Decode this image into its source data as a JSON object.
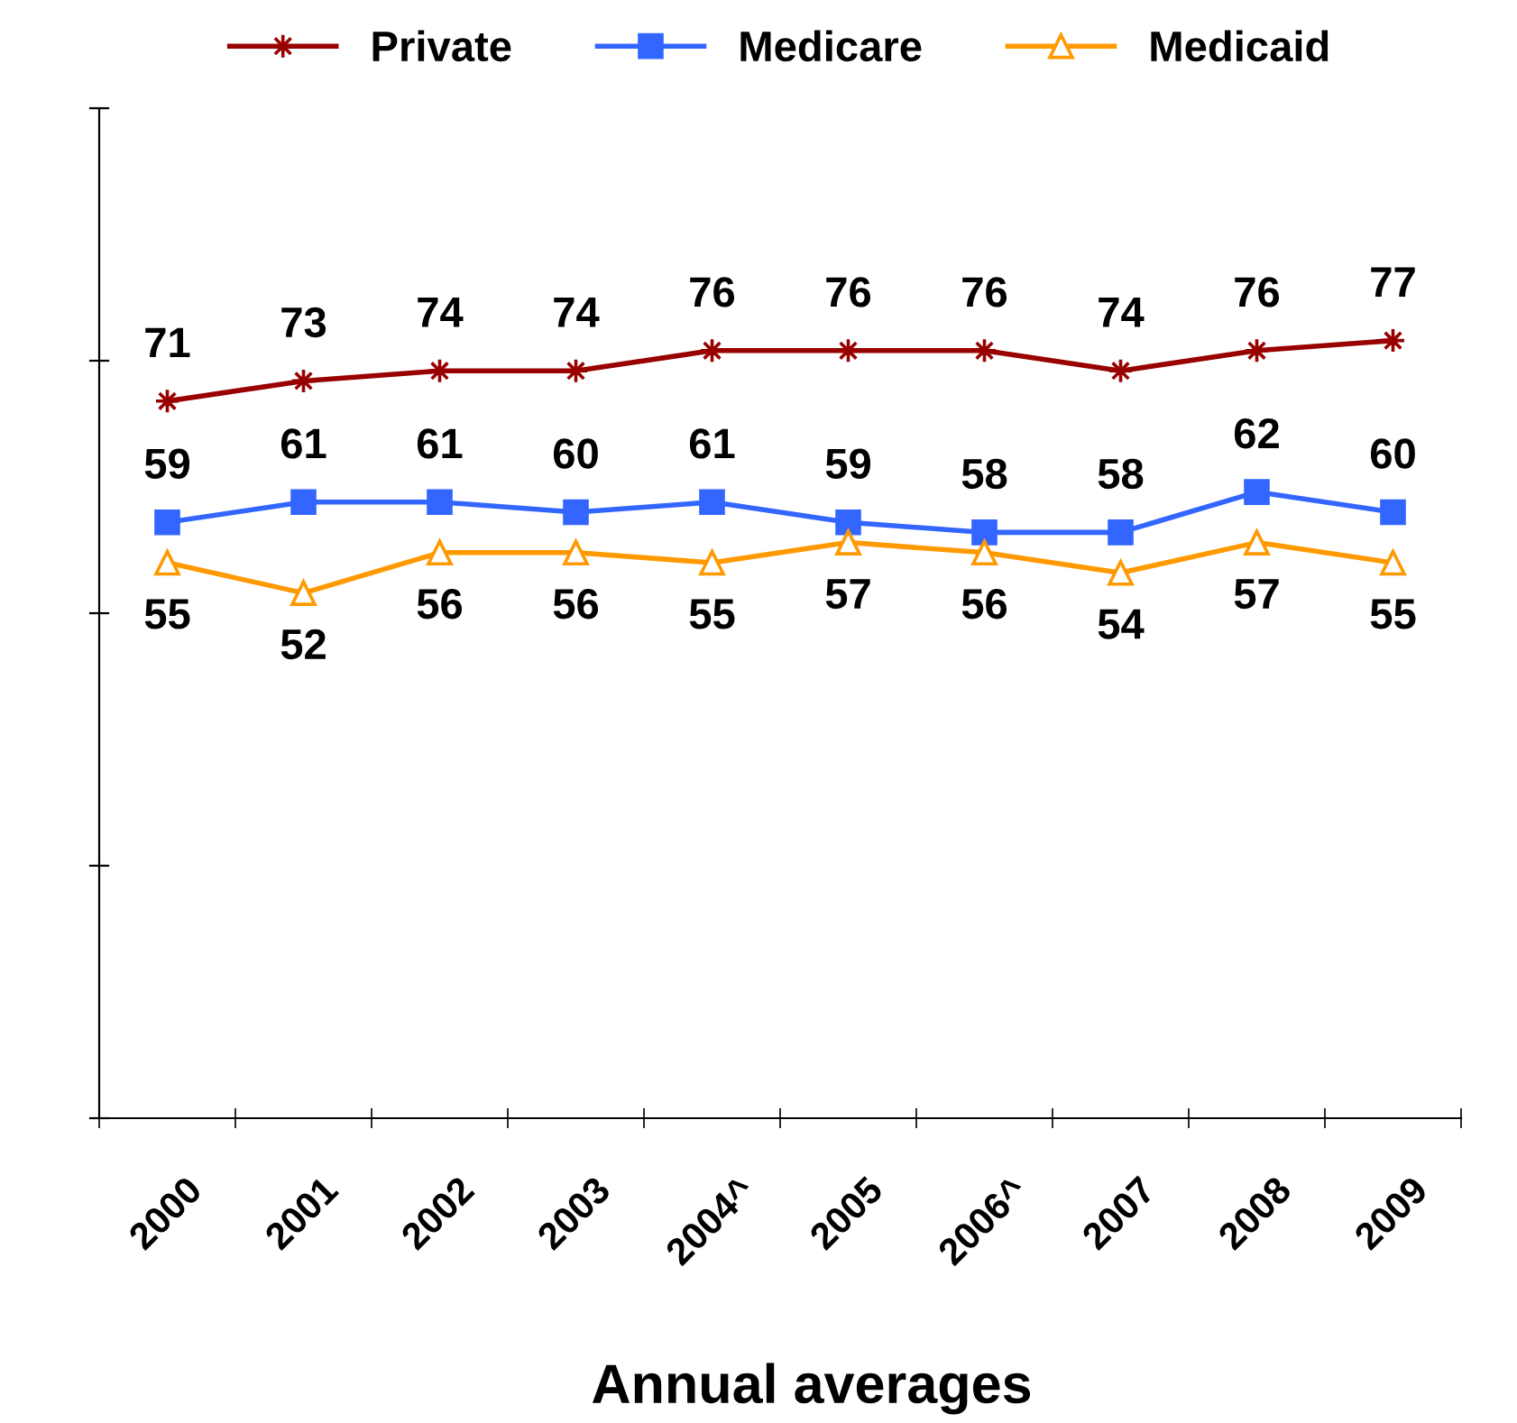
{
  "chart_data": {
    "type": "line",
    "xlabel": "Annual averages",
    "categories": [
      "2000",
      "2001",
      "2002",
      "2003",
      "2004^",
      "2005",
      "2006^",
      "2007",
      "2008",
      "2009"
    ],
    "series": [
      {
        "name": "Private",
        "color": "#990000",
        "marker": "star",
        "values": [
          71,
          73,
          74,
          74,
          76,
          76,
          76,
          74,
          76,
          77
        ]
      },
      {
        "name": "Medicare",
        "color": "#3366ff",
        "marker": "square",
        "values": [
          59,
          61,
          61,
          60,
          61,
          59,
          58,
          58,
          62,
          60
        ]
      },
      {
        "name": "Medicaid",
        "color": "#ff9900",
        "marker": "triangle",
        "values": [
          55,
          52,
          56,
          56,
          55,
          57,
          56,
          54,
          57,
          55
        ]
      }
    ],
    "ylim": [
      0,
      100
    ],
    "yticks": [
      {
        "value": 0,
        "label": null
      },
      {
        "value": 25,
        "label": null
      },
      {
        "value": 50,
        "label": null
      },
      {
        "value": 75,
        "label": null
      },
      {
        "value": 100,
        "label": null
      }
    ],
    "data_labels": true,
    "tick_labels": "x",
    "legend": "top",
    "grid": false
  }
}
